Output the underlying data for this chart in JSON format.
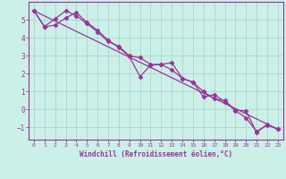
{
  "xlabel": "Windchill (Refroidissement éolien,°C)",
  "ylabel": "",
  "bg_color": "#caf0e8",
  "line_color": "#993399",
  "grid_color": "#b0ccc8",
  "axis_label_color": "#993399",
  "tick_color": "#993399",
  "xlim": [
    -0.5,
    23.5
  ],
  "ylim": [
    -1.7,
    6.0
  ],
  "yticks": [
    -1,
    0,
    1,
    2,
    3,
    4,
    5
  ],
  "xticks": [
    0,
    1,
    2,
    3,
    4,
    5,
    6,
    7,
    8,
    9,
    10,
    11,
    12,
    13,
    14,
    15,
    16,
    17,
    18,
    19,
    20,
    21,
    22,
    23
  ],
  "series1_x": [
    0,
    1,
    2,
    3,
    4,
    5,
    6,
    7,
    8,
    9,
    10,
    11,
    12,
    13,
    14,
    15,
    16,
    17,
    18,
    19,
    20,
    21,
    22,
    23
  ],
  "series1_y": [
    5.5,
    4.6,
    4.7,
    5.1,
    5.4,
    4.85,
    4.4,
    3.85,
    3.45,
    2.95,
    1.82,
    2.45,
    2.5,
    2.6,
    1.72,
    1.52,
    0.68,
    0.82,
    0.42,
    -0.08,
    -0.48,
    -1.25,
    -0.88,
    -1.12
  ],
  "series2_x": [
    0,
    1,
    2,
    3,
    4,
    5,
    6,
    7,
    8,
    9,
    10,
    11,
    12,
    13,
    14,
    15,
    16,
    17,
    18,
    19,
    20,
    21,
    22,
    23
  ],
  "series2_y": [
    5.5,
    4.62,
    5.05,
    5.5,
    5.22,
    4.78,
    4.32,
    3.78,
    3.52,
    2.98,
    2.88,
    2.5,
    2.5,
    2.2,
    1.72,
    1.5,
    0.98,
    0.58,
    0.48,
    -0.05,
    -0.1,
    -1.3,
    -0.85,
    -1.12
  ],
  "series3_x": [
    0,
    23
  ],
  "series3_y": [
    5.5,
    -1.12
  ],
  "marker": "D",
  "markersize": 2.5,
  "linewidth": 0.9
}
